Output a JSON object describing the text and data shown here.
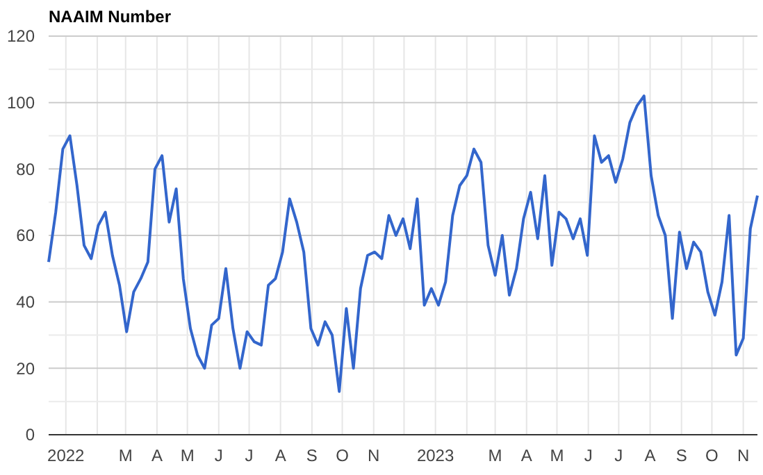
{
  "chart_data": {
    "type": "line",
    "title": "NAAIM Number",
    "x": [
      "2021-12-15",
      "2021-12-22",
      "2021-12-29",
      "2022-01-05",
      "2022-01-12",
      "2022-01-19",
      "2022-01-26",
      "2022-02-02",
      "2022-02-09",
      "2022-02-16",
      "2022-02-23",
      "2022-03-02",
      "2022-03-09",
      "2022-03-16",
      "2022-03-23",
      "2022-03-30",
      "2022-04-06",
      "2022-04-13",
      "2022-04-20",
      "2022-04-27",
      "2022-05-04",
      "2022-05-11",
      "2022-05-18",
      "2022-05-25",
      "2022-06-01",
      "2022-06-08",
      "2022-06-15",
      "2022-06-22",
      "2022-06-29",
      "2022-07-06",
      "2022-07-13",
      "2022-07-20",
      "2022-07-27",
      "2022-08-03",
      "2022-08-10",
      "2022-08-17",
      "2022-08-24",
      "2022-08-31",
      "2022-09-07",
      "2022-09-14",
      "2022-09-21",
      "2022-09-28",
      "2022-10-05",
      "2022-10-12",
      "2022-10-19",
      "2022-10-26",
      "2022-11-02",
      "2022-11-09",
      "2022-11-16",
      "2022-11-23",
      "2022-11-30",
      "2022-12-07",
      "2022-12-14",
      "2022-12-21",
      "2022-12-28",
      "2023-01-04",
      "2023-01-11",
      "2023-01-18",
      "2023-01-25",
      "2023-02-01",
      "2023-02-08",
      "2023-02-15",
      "2023-02-22",
      "2023-03-01",
      "2023-03-08",
      "2023-03-15",
      "2023-03-22",
      "2023-03-29",
      "2023-04-05",
      "2023-04-12",
      "2023-04-19",
      "2023-04-26",
      "2023-05-03",
      "2023-05-10",
      "2023-05-17",
      "2023-05-24",
      "2023-05-31",
      "2023-06-07",
      "2023-06-14",
      "2023-06-21",
      "2023-06-28",
      "2023-07-05",
      "2023-07-12",
      "2023-07-19",
      "2023-07-26",
      "2023-08-02",
      "2023-08-09",
      "2023-08-16",
      "2023-08-23",
      "2023-08-30",
      "2023-09-06",
      "2023-09-13",
      "2023-09-20",
      "2023-09-27",
      "2023-10-04",
      "2023-10-11",
      "2023-10-18",
      "2023-10-25",
      "2023-11-01",
      "2023-11-08",
      "2023-11-15"
    ],
    "series": [
      {
        "color": "#3366cc",
        "values": [
          52,
          67,
          86,
          90,
          75,
          57,
          53,
          63,
          67,
          54,
          45,
          31,
          43,
          47,
          52,
          80,
          84,
          64,
          74,
          47,
          32,
          24,
          20,
          33,
          35,
          50,
          32,
          20,
          31,
          28,
          27,
          45,
          47,
          55,
          71,
          64,
          55,
          32,
          27,
          34,
          30,
          13,
          38,
          20,
          44,
          54,
          55,
          53,
          66,
          60,
          65,
          56,
          71,
          39,
          44,
          39,
          46,
          66,
          75,
          78,
          86,
          82,
          57,
          48,
          60,
          42,
          50,
          65,
          73,
          59,
          78,
          51,
          67,
          65,
          59,
          65,
          54,
          90,
          82,
          84,
          76,
          83,
          94,
          99,
          102,
          78,
          66,
          60,
          35,
          61,
          50,
          58,
          55,
          43,
          36,
          46,
          66,
          24,
          29,
          62,
          72
        ]
      }
    ],
    "xlim": [
      "2021-12-15",
      "2023-11-15"
    ],
    "xticks": [
      {
        "value": "2022-01-01",
        "label": "2022"
      },
      {
        "value": "2022-02-01",
        "label": null
      },
      {
        "value": "2022-03-01",
        "label": "M"
      },
      {
        "value": "2022-04-01",
        "label": "A"
      },
      {
        "value": "2022-05-01",
        "label": "M"
      },
      {
        "value": "2022-06-01",
        "label": "J"
      },
      {
        "value": "2022-07-01",
        "label": "J"
      },
      {
        "value": "2022-08-01",
        "label": "A"
      },
      {
        "value": "2022-09-01",
        "label": "S"
      },
      {
        "value": "2022-10-01",
        "label": "O"
      },
      {
        "value": "2022-11-01",
        "label": "N"
      },
      {
        "value": "2022-12-01",
        "label": null
      },
      {
        "value": "2023-01-01",
        "label": "2023"
      },
      {
        "value": "2023-02-01",
        "label": null
      },
      {
        "value": "2023-03-01",
        "label": "M"
      },
      {
        "value": "2023-04-01",
        "label": "A"
      },
      {
        "value": "2023-05-01",
        "label": "M"
      },
      {
        "value": "2023-06-01",
        "label": "J"
      },
      {
        "value": "2023-07-01",
        "label": "J"
      },
      {
        "value": "2023-08-01",
        "label": "A"
      },
      {
        "value": "2023-09-01",
        "label": "S"
      },
      {
        "value": "2023-10-01",
        "label": "O"
      },
      {
        "value": "2023-11-01",
        "label": "N"
      }
    ],
    "ylim": [
      0,
      120
    ],
    "yticks": [
      0,
      {
        "value": 10,
        "label": null
      },
      20,
      {
        "value": 30,
        "label": null
      },
      40,
      {
        "value": 50,
        "label": null
      },
      60,
      {
        "value": 70,
        "label": null
      },
      80,
      {
        "value": 90,
        "label": null
      },
      100,
      {
        "value": 110,
        "label": null
      },
      120
    ],
    "grid": true,
    "marker": "none",
    "line_style": "solid"
  }
}
